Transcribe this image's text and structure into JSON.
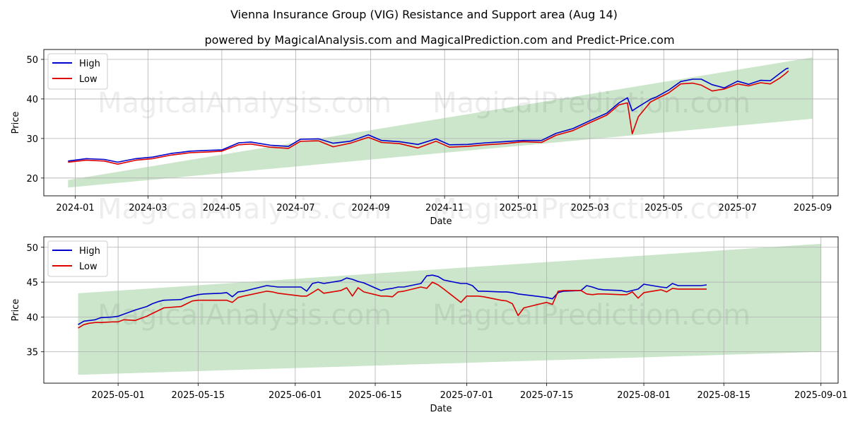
{
  "title": "Vienna Insurance Group (VIG) Resistance and Support area (Aug 14)",
  "subtitle": "powered by MagicalAnalysis.com and MagicalPrediction.com and Predict-Price.com",
  "watermarks": [
    "MagicalAnalysis.com",
    "MagicalPrediction.com"
  ],
  "colors": {
    "high": "#0000cc",
    "low": "#dd0000",
    "band": "#a9d6a9",
    "grid": "#b0b0b0"
  },
  "chart_data": [
    {
      "type": "line",
      "xlabel": "Date",
      "ylabel": "Price",
      "xlim": [
        "2023-12-06",
        "2025-09-22"
      ],
      "ylim": [
        15.5,
        52.5
      ],
      "x_ticks": [
        "2024-01",
        "2024-03",
        "2024-05",
        "2024-07",
        "2024-09",
        "2024-11",
        "2025-01",
        "2025-03",
        "2025-05",
        "2025-07",
        "2025-09"
      ],
      "y_ticks": [
        20,
        30,
        40,
        50
      ],
      "grid": true,
      "legend": "top-left",
      "band": {
        "x": [
          "2023-12-26",
          "2025-09-01"
        ],
        "upper": [
          19.5,
          50.5
        ],
        "lower": [
          17.6,
          35.0
        ]
      },
      "series": [
        {
          "name": "High",
          "x": [
            "2023-12-26",
            "2024-01-10",
            "2024-01-25",
            "2024-02-05",
            "2024-02-20",
            "2024-03-05",
            "2024-03-20",
            "2024-04-05",
            "2024-04-20",
            "2024-05-01",
            "2024-05-15",
            "2024-05-25",
            "2024-06-10",
            "2024-06-25",
            "2024-07-05",
            "2024-07-20",
            "2024-08-01",
            "2024-08-15",
            "2024-08-30",
            "2024-09-10",
            "2024-09-25",
            "2024-10-10",
            "2024-10-25",
            "2024-11-05",
            "2024-11-20",
            "2024-12-05",
            "2024-12-20",
            "2025-01-05",
            "2025-01-20",
            "2025-02-01",
            "2025-02-15",
            "2025-03-01",
            "2025-03-15",
            "2025-03-25",
            "2025-04-01",
            "2025-04-05",
            "2025-04-10",
            "2025-04-20",
            "2025-04-25",
            "2025-05-05",
            "2025-05-15",
            "2025-05-25",
            "2025-06-01",
            "2025-06-10",
            "2025-06-20",
            "2025-07-01",
            "2025-07-10",
            "2025-07-20",
            "2025-07-28",
            "2025-08-05",
            "2025-08-10",
            "2025-08-12"
          ],
          "values": [
            24.3,
            24.9,
            24.7,
            24.0,
            24.9,
            25.3,
            26.2,
            26.8,
            27.0,
            27.1,
            28.9,
            29.1,
            28.3,
            28.0,
            29.8,
            29.9,
            28.8,
            29.3,
            30.9,
            29.5,
            29.2,
            28.5,
            29.9,
            28.4,
            28.5,
            28.9,
            29.2,
            29.5,
            29.5,
            31.3,
            32.5,
            34.5,
            36.4,
            39.0,
            40.3,
            37.0,
            38.0,
            39.9,
            40.5,
            42.2,
            44.4,
            45.0,
            45.0,
            43.6,
            42.8,
            44.5,
            43.7,
            44.7,
            44.6,
            46.5,
            47.6,
            47.8
          ]
        },
        {
          "name": "Low",
          "x": [
            "2023-12-26",
            "2024-01-10",
            "2024-01-25",
            "2024-02-05",
            "2024-02-20",
            "2024-03-05",
            "2024-03-20",
            "2024-04-05",
            "2024-04-20",
            "2024-05-01",
            "2024-05-15",
            "2024-05-25",
            "2024-06-10",
            "2024-06-25",
            "2024-07-05",
            "2024-07-20",
            "2024-08-01",
            "2024-08-15",
            "2024-08-30",
            "2024-09-10",
            "2024-09-25",
            "2024-10-10",
            "2024-10-25",
            "2024-11-05",
            "2024-11-20",
            "2024-12-05",
            "2024-12-20",
            "2025-01-05",
            "2025-01-20",
            "2025-02-01",
            "2025-02-15",
            "2025-03-01",
            "2025-03-15",
            "2025-03-25",
            "2025-04-01",
            "2025-04-05",
            "2025-04-10",
            "2025-04-20",
            "2025-04-25",
            "2025-05-05",
            "2025-05-15",
            "2025-05-25",
            "2025-06-01",
            "2025-06-10",
            "2025-06-20",
            "2025-07-01",
            "2025-07-10",
            "2025-07-20",
            "2025-07-28",
            "2025-08-05",
            "2025-08-10",
            "2025-08-12"
          ],
          "values": [
            24.0,
            24.5,
            24.3,
            23.5,
            24.5,
            24.9,
            25.8,
            26.4,
            26.6,
            26.8,
            28.4,
            28.6,
            27.8,
            27.5,
            29.3,
            29.4,
            27.9,
            28.8,
            30.3,
            29.0,
            28.7,
            27.6,
            29.3,
            27.8,
            28.0,
            28.4,
            28.7,
            29.2,
            29.0,
            30.8,
            32.0,
            34.0,
            35.9,
            38.5,
            39.0,
            31.2,
            35.5,
            39.2,
            40.0,
            41.5,
            43.8,
            44.0,
            43.5,
            42.0,
            42.5,
            43.8,
            43.3,
            44.1,
            43.8,
            45.3,
            46.5,
            47.1
          ]
        }
      ]
    },
    {
      "type": "line",
      "xlabel": "Date",
      "ylabel": "Price",
      "xlim": [
        "2025-04-18",
        "2025-09-04"
      ],
      "ylim": [
        30.5,
        51.5
      ],
      "x_ticks": [
        "2025-05-01",
        "2025-05-15",
        "2025-06-01",
        "2025-06-15",
        "2025-07-01",
        "2025-07-15",
        "2025-08-01",
        "2025-08-15",
        "2025-09-01"
      ],
      "y_ticks": [
        35,
        40,
        45,
        50
      ],
      "grid": true,
      "legend": "top-left",
      "band": {
        "x": [
          "2025-04-24",
          "2025-09-01"
        ],
        "upper": [
          43.4,
          50.5
        ],
        "lower": [
          31.7,
          35.0
        ]
      },
      "series": [
        {
          "name": "High",
          "x": [
            "2025-04-24",
            "2025-04-25",
            "2025-04-26",
            "2025-04-27",
            "2025-04-28",
            "2025-04-30",
            "2025-05-01",
            "2025-05-02",
            "2025-05-04",
            "2025-05-06",
            "2025-05-07",
            "2025-05-08",
            "2025-05-09",
            "2025-05-12",
            "2025-05-13",
            "2025-05-14",
            "2025-05-15",
            "2025-05-16",
            "2025-05-19",
            "2025-05-20",
            "2025-05-21",
            "2025-05-22",
            "2025-05-23",
            "2025-05-27",
            "2025-05-28",
            "2025-05-29",
            "2025-05-30",
            "2025-06-02",
            "2025-06-03",
            "2025-06-04",
            "2025-06-05",
            "2025-06-06",
            "2025-06-09",
            "2025-06-10",
            "2025-06-11",
            "2025-06-12",
            "2025-06-13",
            "2025-06-16",
            "2025-06-17",
            "2025-06-18",
            "2025-06-19",
            "2025-06-20",
            "2025-06-23",
            "2025-06-24",
            "2025-06-25",
            "2025-06-26",
            "2025-06-27",
            "2025-06-30",
            "2025-07-01",
            "2025-07-02",
            "2025-07-03",
            "2025-07-04",
            "2025-07-07",
            "2025-07-08",
            "2025-07-09",
            "2025-07-10",
            "2025-07-11",
            "2025-07-14",
            "2025-07-15",
            "2025-07-16",
            "2025-07-17",
            "2025-07-18",
            "2025-07-21",
            "2025-07-22",
            "2025-07-23",
            "2025-07-24",
            "2025-07-25",
            "2025-07-28",
            "2025-07-29",
            "2025-07-30",
            "2025-07-31",
            "2025-08-01",
            "2025-08-04",
            "2025-08-05",
            "2025-08-06",
            "2025-08-07",
            "2025-08-08",
            "2025-08-11",
            "2025-08-12"
          ],
          "values": [
            38.9,
            39.4,
            39.5,
            39.6,
            39.9,
            40.0,
            40.1,
            40.4,
            41.0,
            41.5,
            41.9,
            42.2,
            42.4,
            42.5,
            42.8,
            43.0,
            43.2,
            43.3,
            43.4,
            43.5,
            42.9,
            43.6,
            43.7,
            44.5,
            44.4,
            44.3,
            44.3,
            44.3,
            43.7,
            44.8,
            45.0,
            44.8,
            45.2,
            45.6,
            45.4,
            45.1,
            44.9,
            43.8,
            44.0,
            44.1,
            44.3,
            44.3,
            44.8,
            45.9,
            46.0,
            45.8,
            45.3,
            44.8,
            44.8,
            44.5,
            43.7,
            43.7,
            43.6,
            43.6,
            43.5,
            43.3,
            43.2,
            42.9,
            42.8,
            42.6,
            43.5,
            43.7,
            43.8,
            44.5,
            44.3,
            44.0,
            43.9,
            43.8,
            43.6,
            43.8,
            44.0,
            44.7,
            44.3,
            44.2,
            44.8,
            44.5,
            44.5,
            44.5,
            44.6
          ]
        },
        {
          "name": "Low",
          "x": [
            "2025-04-24",
            "2025-04-25",
            "2025-04-26",
            "2025-04-27",
            "2025-04-28",
            "2025-04-30",
            "2025-05-01",
            "2025-05-02",
            "2025-05-04",
            "2025-05-06",
            "2025-05-07",
            "2025-05-08",
            "2025-05-09",
            "2025-05-12",
            "2025-05-13",
            "2025-05-14",
            "2025-05-15",
            "2025-05-16",
            "2025-05-19",
            "2025-05-20",
            "2025-05-21",
            "2025-05-22",
            "2025-05-23",
            "2025-05-27",
            "2025-05-28",
            "2025-05-29",
            "2025-05-30",
            "2025-06-02",
            "2025-06-03",
            "2025-06-04",
            "2025-06-05",
            "2025-06-06",
            "2025-06-09",
            "2025-06-10",
            "2025-06-11",
            "2025-06-12",
            "2025-06-13",
            "2025-06-16",
            "2025-06-17",
            "2025-06-18",
            "2025-06-19",
            "2025-06-20",
            "2025-06-23",
            "2025-06-24",
            "2025-06-25",
            "2025-06-26",
            "2025-06-27",
            "2025-06-30",
            "2025-07-01",
            "2025-07-02",
            "2025-07-03",
            "2025-07-04",
            "2025-07-07",
            "2025-07-08",
            "2025-07-09",
            "2025-07-10",
            "2025-07-11",
            "2025-07-14",
            "2025-07-15",
            "2025-07-16",
            "2025-07-17",
            "2025-07-18",
            "2025-07-21",
            "2025-07-22",
            "2025-07-23",
            "2025-07-24",
            "2025-07-25",
            "2025-07-28",
            "2025-07-29",
            "2025-07-30",
            "2025-07-31",
            "2025-08-01",
            "2025-08-04",
            "2025-08-05",
            "2025-08-06",
            "2025-08-07",
            "2025-08-08",
            "2025-08-11",
            "2025-08-12"
          ],
          "values": [
            38.4,
            38.9,
            39.1,
            39.2,
            39.2,
            39.3,
            39.3,
            39.6,
            39.5,
            40.1,
            40.5,
            40.9,
            41.3,
            41.5,
            41.9,
            42.3,
            42.4,
            42.4,
            42.4,
            42.4,
            42.1,
            42.8,
            43.0,
            43.7,
            43.6,
            43.4,
            43.3,
            43.0,
            43.0,
            43.5,
            44.0,
            43.4,
            43.8,
            44.2,
            43.0,
            44.2,
            43.6,
            43.0,
            43.0,
            42.9,
            43.6,
            43.7,
            44.3,
            44.1,
            45.0,
            44.6,
            44.0,
            42.1,
            43.0,
            43.0,
            43.0,
            42.9,
            42.4,
            42.3,
            41.9,
            40.2,
            41.3,
            41.9,
            42.1,
            41.8,
            43.7,
            43.8,
            43.8,
            43.3,
            43.2,
            43.3,
            43.3,
            43.2,
            43.2,
            43.6,
            42.7,
            43.5,
            43.9,
            43.6,
            44.1,
            44.0,
            44.0,
            44.0,
            44.0
          ]
        }
      ]
    }
  ]
}
